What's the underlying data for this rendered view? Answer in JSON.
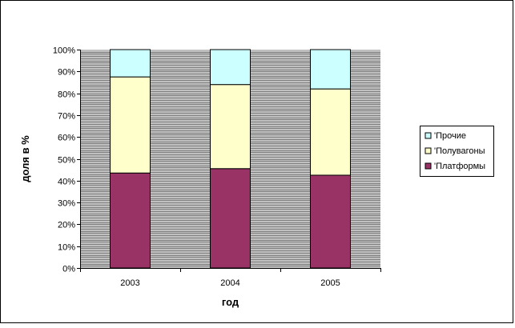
{
  "chart_data": {
    "type": "bar",
    "stacked": true,
    "percent_stacked": true,
    "categories": [
      "2003",
      "2004",
      "2005"
    ],
    "series": [
      {
        "name": "'Платформы",
        "values": [
          43.5,
          45.5,
          42.5
        ],
        "color": "#993366"
      },
      {
        "name": "'Полувагоны",
        "values": [
          44,
          38.5,
          39.5
        ],
        "color": "#FFFFCC"
      },
      {
        "name": "'Прочие",
        "values": [
          12.5,
          16,
          18
        ],
        "color": "#CCFFFF"
      }
    ],
    "xlabel": "год",
    "ylabel": "доля в %",
    "ylim": [
      0,
      100
    ],
    "yticks": [
      "0%",
      "10%",
      "20%",
      "30%",
      "40%",
      "50%",
      "60%",
      "70%",
      "80%",
      "90%",
      "100%"
    ],
    "grid": true,
    "plot_background": "#C0C0C0",
    "grid_color": "#808080",
    "legend_position": "right",
    "legend_order": [
      "'Прочие",
      "'Полувагоны",
      "'Платформы"
    ]
  }
}
